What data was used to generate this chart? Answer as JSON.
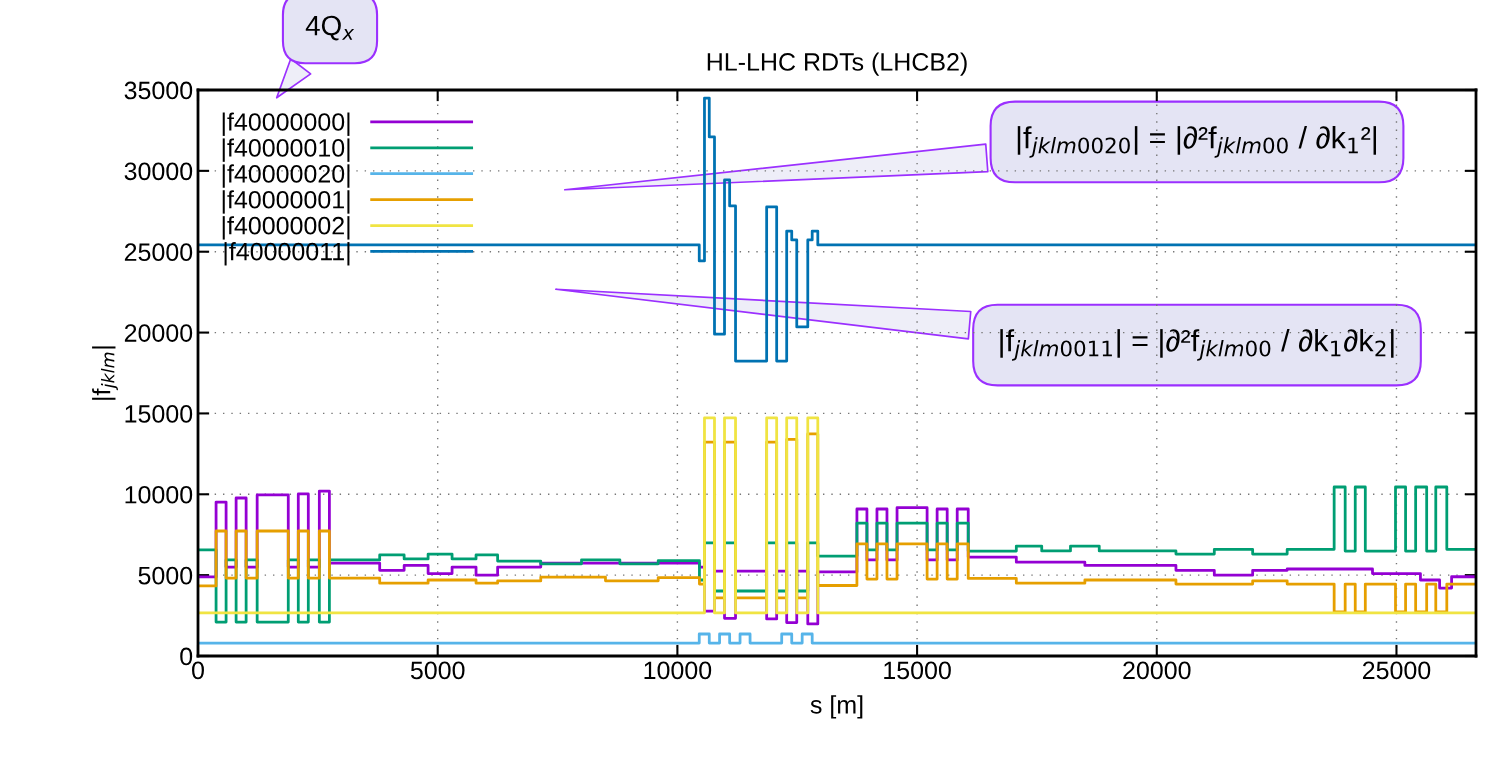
{
  "chart_data": {
    "type": "step",
    "title": "HL-LHC RDTs (LHCB2)",
    "xlabel": "s [m]",
    "ylabel": "|f$_{jklm}$|",
    "xlim": [
      0,
      26659
    ],
    "xticks": [
      0,
      5000,
      10000,
      15000,
      20000,
      25000
    ],
    "ylim": [
      0,
      35000
    ],
    "yticks": [
      0,
      5000,
      10000,
      15000,
      20000,
      25000,
      30000,
      35000
    ],
    "grid": true,
    "legend": "top left",
    "line_style": "solid",
    "marker": "none",
    "annotations": [
      "4Q$_{x}$",
      "|f$_{jklm0020}$| = |∂²f$_{jklm00}$ / ∂k$_{1}$²|",
      "|f$_{jklm0011}$| = |∂²f$_{jklm00}$ / ∂k$_{1}$∂k$_{2}$|"
    ],
    "series": [
      {
        "name": "|f40000000|",
        "color": "#9400d3",
        "x": [
          0,
          377,
          586,
          795,
          1004,
          1234,
          1883,
          2092,
          2301,
          2531,
          2741,
          3790,
          4300,
          4800,
          5300,
          5800,
          6250,
          7150,
          10460,
          10565,
          10774,
          10983,
          11213,
          11862,
          12071,
          12280,
          12490,
          12720,
          12929,
          13745,
          13954,
          14163,
          14372,
          14582,
          15209,
          15418,
          15628,
          15837,
          16067,
          17070,
          18500,
          20400,
          21200,
          22000,
          22720,
          24500,
          25500,
          25900,
          26150,
          26659
        ],
        "values": [
          4890,
          9520,
          5500,
          9770,
          5500,
          9960,
          5500,
          10020,
          5500,
          10200,
          5750,
          5300,
          5600,
          5100,
          5500,
          5000,
          5500,
          5750,
          5500,
          2780,
          5250,
          2330,
          5250,
          2290,
          5250,
          2070,
          5250,
          1980,
          5200,
          9090,
          5940,
          9090,
          5940,
          9170,
          5940,
          9090,
          5940,
          9090,
          6120,
          5800,
          5600,
          5300,
          5000,
          5300,
          5380,
          5100,
          4700,
          4200,
          4900,
          4900
        ]
      },
      {
        "name": "|f40000010|",
        "color": "#009e73",
        "x": [
          0,
          377,
          586,
          795,
          1004,
          1234,
          1883,
          2092,
          2301,
          2531,
          2741,
          3790,
          4300,
          4800,
          5300,
          5800,
          6250,
          7150,
          8000,
          8800,
          9600,
          10460,
          10565,
          10774,
          10983,
          11213,
          11862,
          12071,
          12280,
          12490,
          12720,
          12929,
          13745,
          13954,
          14163,
          14372,
          14582,
          15209,
          15418,
          15628,
          15837,
          16067,
          17070,
          17600,
          18200,
          18800,
          20400,
          21200,
          22000,
          22720,
          23700,
          23930,
          24140,
          24350,
          24980,
          25190,
          25400,
          25630,
          25820,
          26050,
          26659
        ],
        "values": [
          6560,
          2100,
          5940,
          2100,
          5940,
          2100,
          5940,
          2100,
          5940,
          2100,
          5940,
          6250,
          6000,
          6300,
          6000,
          6250,
          5870,
          5700,
          5950,
          5700,
          5900,
          4700,
          6990,
          4020,
          6990,
          4020,
          6990,
          4020,
          6990,
          4020,
          6990,
          6180,
          8220,
          6560,
          8220,
          6560,
          8220,
          6560,
          8220,
          6560,
          8220,
          6490,
          6800,
          6500,
          6800,
          6500,
          6300,
          6600,
          6300,
          6600,
          10450,
          6490,
          10450,
          6490,
          10450,
          6490,
          10450,
          6490,
          10450,
          6600,
          6600
        ]
      },
      {
        "name": "|f40000020|",
        "color": "#56b4e9",
        "x": [
          0,
          10456,
          10665,
          10880,
          11090,
          11307,
          11516,
          12176,
          12385,
          12603,
          12812,
          26659
        ],
        "values": [
          800,
          1360,
          800,
          1360,
          800,
          1360,
          800,
          1360,
          800,
          1360,
          800,
          800
        ]
      },
      {
        "name": "|f40000001|",
        "color": "#e69f00",
        "x": [
          0,
          377,
          586,
          795,
          1004,
          1234,
          1883,
          2092,
          2301,
          2531,
          2741,
          3790,
          4800,
          5800,
          6250,
          7150,
          8500,
          9600,
          10460,
          10565,
          10774,
          10983,
          11213,
          11862,
          12071,
          12280,
          12490,
          12720,
          12929,
          13745,
          13954,
          14163,
          14372,
          14582,
          15209,
          15418,
          15628,
          15837,
          16067,
          17070,
          18500,
          20400,
          22000,
          22720,
          23700,
          23930,
          24140,
          24350,
          24980,
          25190,
          25400,
          25630,
          25820,
          26050,
          26659
        ],
        "values": [
          4330,
          7730,
          4820,
          7730,
          4820,
          7730,
          4820,
          7730,
          4820,
          7730,
          4820,
          4500,
          4700,
          4500,
          4640,
          4880,
          4650,
          4850,
          4450,
          13230,
          3590,
          13230,
          3590,
          13230,
          3590,
          13400,
          3590,
          13730,
          4360,
          6930,
          4760,
          6930,
          4760,
          6930,
          4760,
          6930,
          4760,
          6930,
          4800,
          4500,
          4700,
          4450,
          4650,
          4450,
          2720,
          4450,
          2720,
          4450,
          2720,
          4450,
          2720,
          4450,
          2720,
          4450,
          4450
        ]
      },
      {
        "name": "|f40000002|",
        "color": "#f0e442",
        "x": [
          0,
          10565,
          10774,
          10983,
          11213,
          11862,
          12071,
          12280,
          12490,
          12720,
          12929,
          26659
        ],
        "values": [
          2660,
          14720,
          2660,
          14720,
          2660,
          14720,
          2660,
          14720,
          2660,
          14720,
          2660,
          2660
        ]
      },
      {
        "name": "|f40000011|",
        "color": "#0072b2",
        "x": [
          0,
          10456,
          10565,
          10665,
          10774,
          10983,
          11090,
          11213,
          11862,
          12071,
          12280,
          12385,
          12490,
          12720,
          12812,
          12929,
          26659
        ],
        "values": [
          25420,
          24430,
          34500,
          32100,
          19900,
          29440,
          27830,
          18240,
          27770,
          18240,
          26280,
          25730,
          20350,
          25730,
          26280,
          25420,
          25420
        ]
      }
    ]
  }
}
